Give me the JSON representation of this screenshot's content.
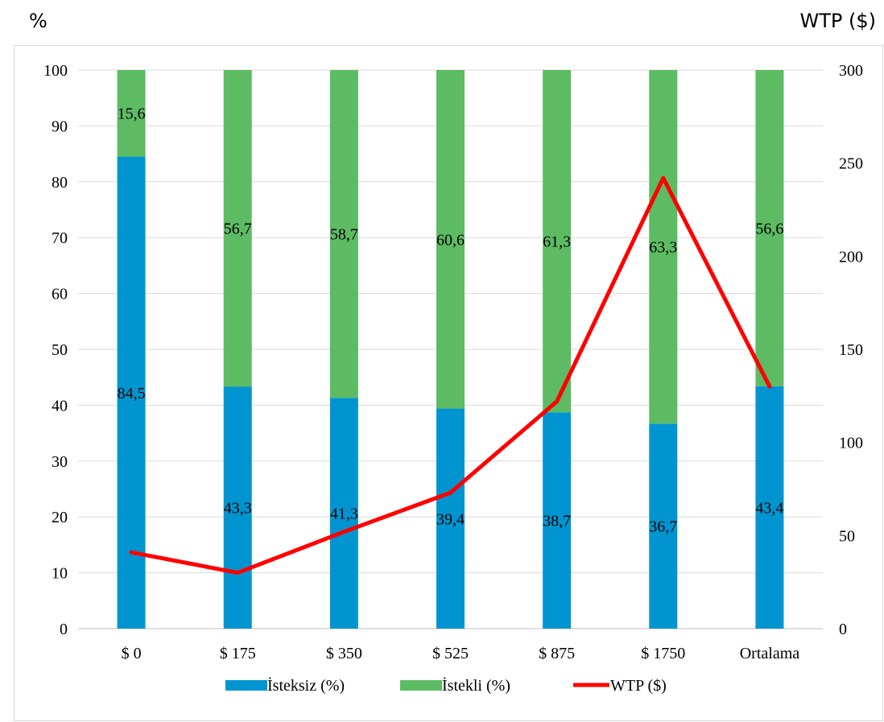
{
  "chart_data": {
    "type": "bar",
    "stacked": true,
    "categories": [
      "$ 0",
      "$ 175",
      "$ 350",
      "$ 525",
      "$ 875",
      "$ 1750",
      "Ortalama"
    ],
    "series": [
      {
        "name": "İsteksiz (%)",
        "kind": "bar",
        "axis": "left",
        "color": "#0095d0",
        "values": [
          84.5,
          43.3,
          41.3,
          39.4,
          38.7,
          36.7,
          43.4
        ],
        "labels": [
          "84,5",
          "43,3",
          "41,3",
          "39,4",
          "38,7",
          "36,7",
          "43,4"
        ]
      },
      {
        "name": "İstekli (%)",
        "kind": "bar",
        "axis": "left",
        "color": "#5dbb63",
        "values": [
          15.6,
          56.7,
          58.7,
          60.6,
          61.3,
          63.3,
          56.6
        ],
        "labels": [
          "15,6",
          "56,7",
          "58,7",
          "60,6",
          "61,3",
          "63,3",
          "56,6"
        ]
      },
      {
        "name": "WTP ($)",
        "kind": "line",
        "axis": "right",
        "color": "#ff0000",
        "values": [
          41,
          30,
          52,
          73,
          122,
          242,
          130
        ]
      }
    ],
    "y_left": {
      "unit": "%",
      "ylim": [
        0,
        100
      ],
      "ticks": [
        "0",
        "10",
        "20",
        "30",
        "40",
        "50",
        "60",
        "70",
        "80",
        "90",
        "100"
      ]
    },
    "y_right": {
      "unit": "WTP ($)",
      "ylim": [
        0,
        300
      ],
      "ticks": [
        "0",
        "50",
        "100",
        "150",
        "200",
        "250",
        "300"
      ]
    },
    "grid": true,
    "legend": "bottom"
  }
}
